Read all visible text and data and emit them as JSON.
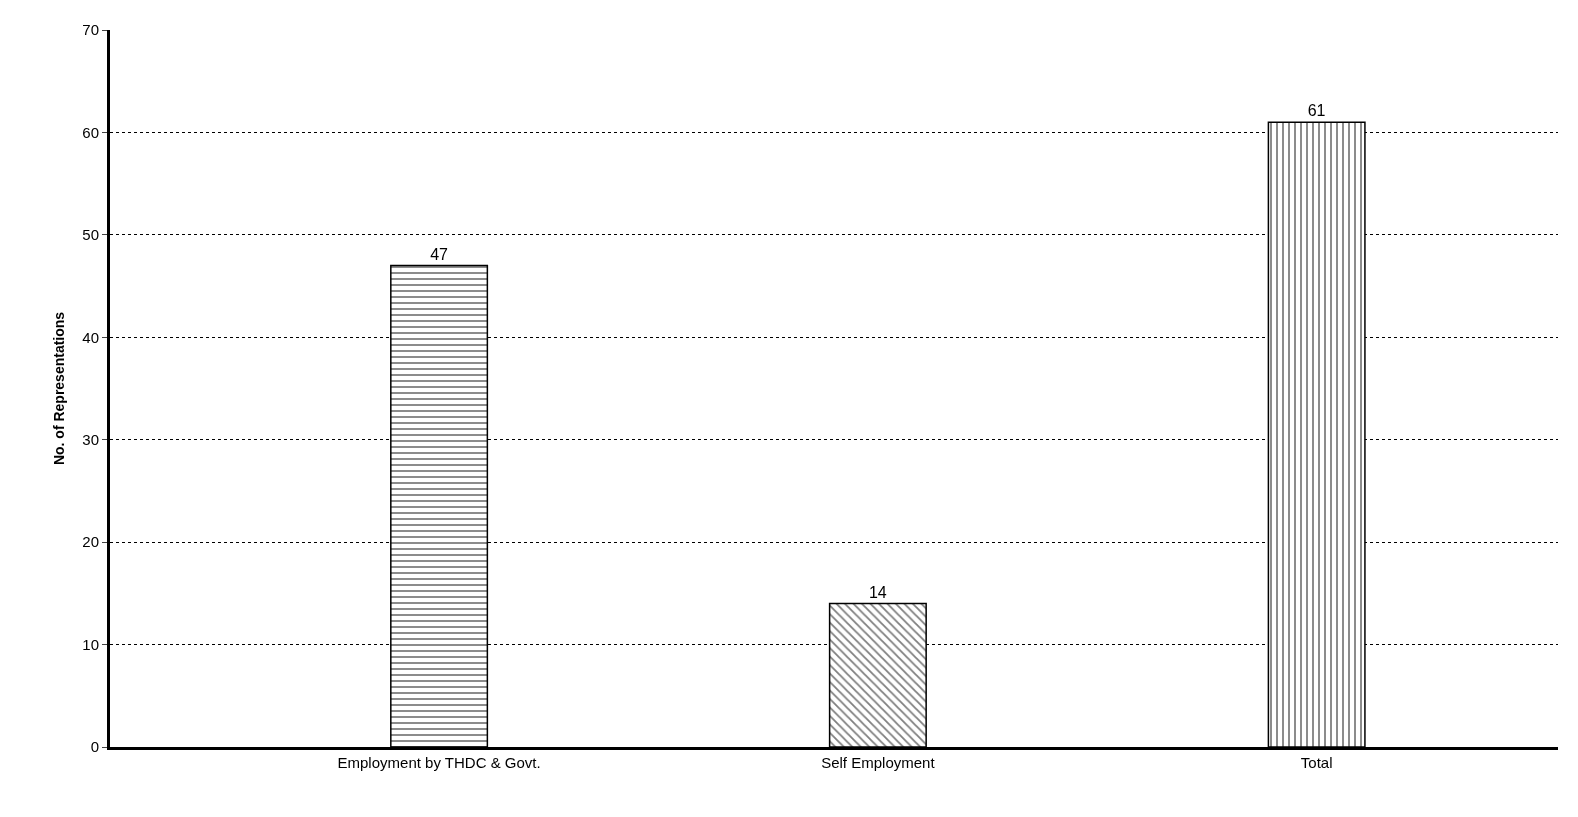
{
  "chart_data": {
    "type": "bar",
    "ylabel": "No. of Representations",
    "categories": [
      "Employment by THDC & Govt.",
      "Self Employment",
      "Total"
    ],
    "values": [
      47,
      14,
      61
    ],
    "color": "#000000",
    "ylim": [
      0,
      70
    ],
    "yticks": [
      0,
      10,
      20,
      30,
      40,
      50,
      60,
      70
    ],
    "grid": "y",
    "data_labels": true
  }
}
